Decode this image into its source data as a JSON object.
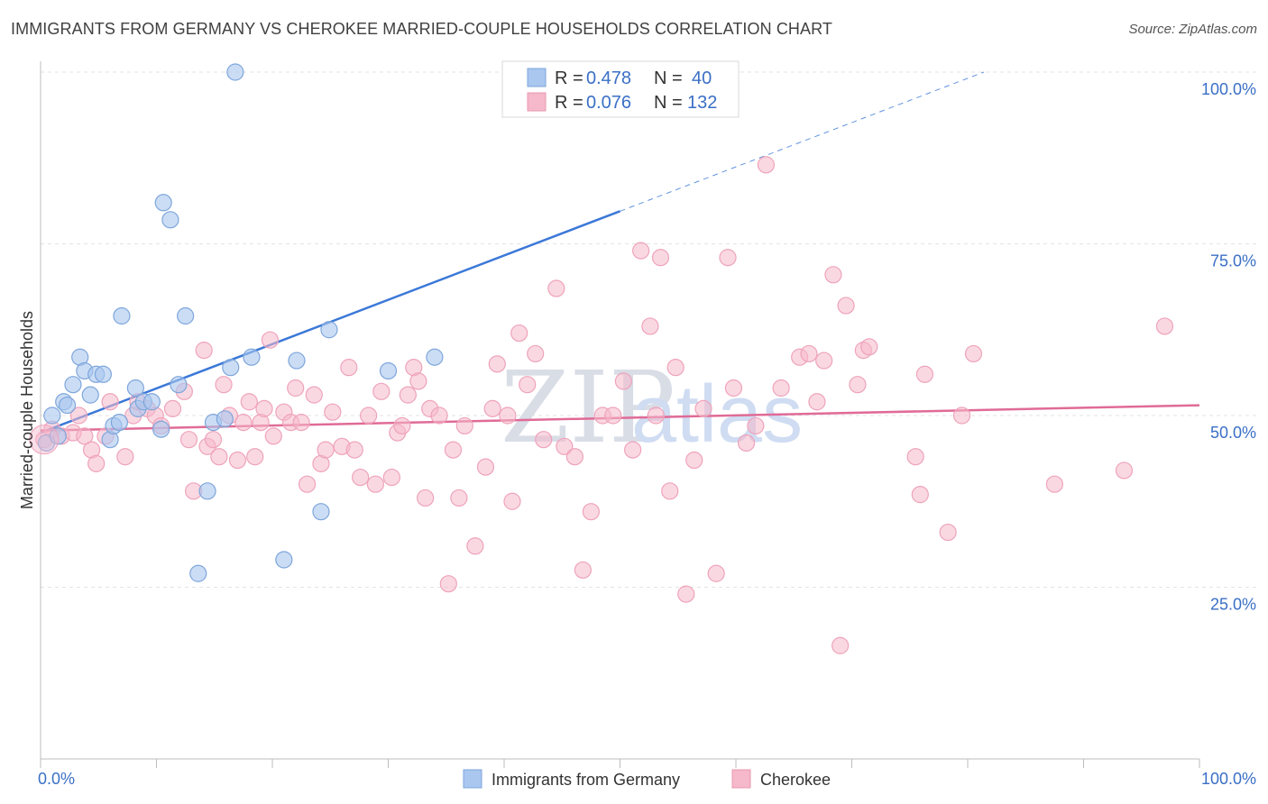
{
  "title": "IMMIGRANTS FROM GERMANY VS CHEROKEE MARRIED-COUPLE HOUSEHOLDS CORRELATION CHART",
  "source": "Source: ZipAtlas.com",
  "watermark": {
    "zip": "ZIP",
    "atlas": "atlas"
  },
  "legend": {
    "r_label": "R =",
    "n_label": "N =",
    "rows": [
      {
        "r": "0.478",
        "n": "40",
        "color": "#a9c7ef"
      },
      {
        "r": "0.076",
        "n": "132",
        "color": "#f6b8cb"
      }
    ]
  },
  "bottom_legend": [
    "Immigrants from Germany",
    "Cherokee"
  ],
  "chart_data": {
    "type": "scatter",
    "title": "IMMIGRANTS FROM GERMANY VS CHEROKEE MARRIED-COUPLE HOUSEHOLDS CORRELATION CHART",
    "xlabel": "",
    "ylabel": "Married-couple Households",
    "xlim": [
      0,
      100
    ],
    "ylim": [
      0,
      100
    ],
    "x_tick_labels": [
      "0.0%",
      "100.0%"
    ],
    "y_tick_labels": [
      "25.0%",
      "50.0%",
      "75.0%",
      "100.0%"
    ],
    "y_ticks": [
      25,
      50,
      75,
      100
    ],
    "grid": "horizontal dashed",
    "legend_position": "top-center",
    "colors": {
      "germany": "#3b78d8",
      "cherokee": "#e06b96",
      "germany_fill": "#a9c7ef",
      "cherokee_fill": "#f6b8cb"
    },
    "series": [
      {
        "name": "Immigrants from Germany",
        "trend": {
          "x0": 0,
          "y0": 47.5,
          "x1": 100,
          "y1": 112,
          "solid_until_x": 50
        },
        "points": [
          [
            0.5,
            46
          ],
          [
            1,
            50
          ],
          [
            1.5,
            47
          ],
          [
            2,
            52
          ],
          [
            2.3,
            51.5
          ],
          [
            2.8,
            54.5
          ],
          [
            3.4,
            58.5
          ],
          [
            3.8,
            56.5
          ],
          [
            4.3,
            53
          ],
          [
            4.8,
            56
          ],
          [
            5.4,
            56
          ],
          [
            6,
            46.5
          ],
          [
            6.3,
            48.5
          ],
          [
            6.8,
            49
          ],
          [
            7,
            64.5
          ],
          [
            8.2,
            54
          ],
          [
            8.4,
            51
          ],
          [
            8.9,
            52
          ],
          [
            9.6,
            52
          ],
          [
            10.4,
            48
          ],
          [
            10.6,
            81
          ],
          [
            11.2,
            78.5
          ],
          [
            11.9,
            54.5
          ],
          [
            12.5,
            64.5
          ],
          [
            13.6,
            27
          ],
          [
            14.4,
            39
          ],
          [
            14.9,
            49
          ],
          [
            15.9,
            49.5
          ],
          [
            16.4,
            57
          ],
          [
            16.8,
            100
          ],
          [
            18.2,
            58.5
          ],
          [
            21,
            29
          ],
          [
            22.1,
            58
          ],
          [
            24.2,
            36
          ],
          [
            24.9,
            62.5
          ],
          [
            30,
            56.5
          ],
          [
            34,
            58.5
          ]
        ]
      },
      {
        "name": "Cherokee",
        "trend": {
          "x0": 0,
          "y0": 47.8,
          "x1": 100,
          "y1": 51.5
        },
        "points": [
          [
            0.3,
            46.5
          ],
          [
            1,
            48
          ],
          [
            1.8,
            47
          ],
          [
            2.8,
            47.5
          ],
          [
            3.3,
            50
          ],
          [
            3.8,
            47
          ],
          [
            4.4,
            45
          ],
          [
            4.8,
            43
          ],
          [
            5.6,
            47
          ],
          [
            6,
            52
          ],
          [
            7.3,
            44
          ],
          [
            8,
            50
          ],
          [
            8.4,
            52
          ],
          [
            9.2,
            51
          ],
          [
            9.9,
            50
          ],
          [
            10.4,
            48.5
          ],
          [
            11.4,
            51
          ],
          [
            12.4,
            53.5
          ],
          [
            12.8,
            46.5
          ],
          [
            13.2,
            39
          ],
          [
            14.1,
            59.5
          ],
          [
            14.4,
            45.5
          ],
          [
            14.9,
            46.5
          ],
          [
            15.4,
            44
          ],
          [
            15.8,
            54.5
          ],
          [
            16.3,
            50
          ],
          [
            17,
            43.5
          ],
          [
            17.5,
            49
          ],
          [
            18,
            52
          ],
          [
            18.5,
            44
          ],
          [
            19,
            49
          ],
          [
            19.3,
            51
          ],
          [
            19.8,
            61
          ],
          [
            20.1,
            47
          ],
          [
            21,
            50.5
          ],
          [
            21.6,
            49
          ],
          [
            22,
            54
          ],
          [
            22.5,
            49
          ],
          [
            23,
            40
          ],
          [
            23.6,
            53
          ],
          [
            24.2,
            43
          ],
          [
            24.6,
            45
          ],
          [
            25.2,
            50.5
          ],
          [
            26,
            45.5
          ],
          [
            26.6,
            57
          ],
          [
            27.1,
            45
          ],
          [
            27.6,
            41
          ],
          [
            28.3,
            50
          ],
          [
            28.9,
            40
          ],
          [
            29.4,
            53.5
          ],
          [
            30.3,
            41
          ],
          [
            30.8,
            47.5
          ],
          [
            31.2,
            48.5
          ],
          [
            31.7,
            53
          ],
          [
            32.2,
            57
          ],
          [
            32.6,
            55
          ],
          [
            33.2,
            38
          ],
          [
            33.6,
            51
          ],
          [
            34.4,
            50
          ],
          [
            35.2,
            25.5
          ],
          [
            35.6,
            45
          ],
          [
            36.1,
            38
          ],
          [
            36.6,
            48.5
          ],
          [
            37.5,
            31
          ],
          [
            38.4,
            42.5
          ],
          [
            39,
            51
          ],
          [
            39.4,
            57.5
          ],
          [
            40.3,
            50
          ],
          [
            40.7,
            37.5
          ],
          [
            41.3,
            62
          ],
          [
            42,
            54.5
          ],
          [
            42.7,
            59
          ],
          [
            43.4,
            46.5
          ],
          [
            44.5,
            68.5
          ],
          [
            45.2,
            45.5
          ],
          [
            46.1,
            44
          ],
          [
            46.8,
            27.5
          ],
          [
            47.5,
            36
          ],
          [
            48.5,
            50
          ],
          [
            49.4,
            50
          ],
          [
            50.3,
            55
          ],
          [
            51.1,
            45
          ],
          [
            51.8,
            74
          ],
          [
            52.6,
            63
          ],
          [
            53.1,
            50
          ],
          [
            53.5,
            73
          ],
          [
            54.3,
            39
          ],
          [
            54.8,
            57
          ],
          [
            55.7,
            24
          ],
          [
            56.4,
            43.5
          ],
          [
            57.2,
            51
          ],
          [
            58.3,
            27
          ],
          [
            59.3,
            73
          ],
          [
            59.8,
            54
          ],
          [
            60.9,
            46
          ],
          [
            61.7,
            48.5
          ],
          [
            62.6,
            86.5
          ],
          [
            63.9,
            54
          ],
          [
            65.5,
            58.5
          ],
          [
            66.3,
            59
          ],
          [
            67,
            52
          ],
          [
            67.6,
            58
          ],
          [
            68.4,
            70.5
          ],
          [
            69,
            16.5
          ],
          [
            69.5,
            66
          ],
          [
            70.5,
            54.5
          ],
          [
            71,
            59.5
          ],
          [
            71.5,
            60
          ],
          [
            75.5,
            44
          ],
          [
            75.9,
            38.5
          ],
          [
            76.3,
            56
          ],
          [
            78.3,
            33
          ],
          [
            79.5,
            50
          ],
          [
            80.5,
            59
          ],
          [
            87.5,
            40
          ],
          [
            93.5,
            42
          ],
          [
            97,
            63
          ]
        ]
      }
    ]
  }
}
